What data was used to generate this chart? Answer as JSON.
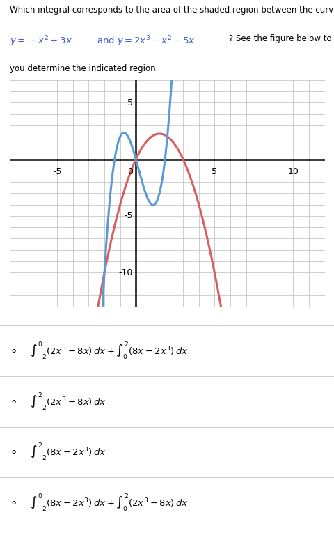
{
  "graph_xlim": [
    -8,
    12
  ],
  "graph_ylim": [
    -13,
    7
  ],
  "xticks": [
    -5,
    0,
    5,
    10
  ],
  "yticks": [
    -10,
    -5,
    5
  ],
  "curve1_color": "#d95f5f",
  "curve2_color": "#5b9bd5",
  "bg_color": "#ffffff",
  "grid_color": "#bbbbbb",
  "options": [
    "$\\int_{-2}^{0} (2x^3 - 8x)\\, dx + \\int_{0}^{2} (8x - 2x^3)\\, dx$",
    "$\\int_{-2}^{2} (2x^3 - 8x)\\, dx$",
    "$\\int_{-2}^{2} (8x - 2x^3)\\, dx$",
    "$\\int_{-2}^{0} (8x - 2x^3)\\, dx + \\int_{0}^{2} (2x^3 - 8x)\\, dx$"
  ]
}
